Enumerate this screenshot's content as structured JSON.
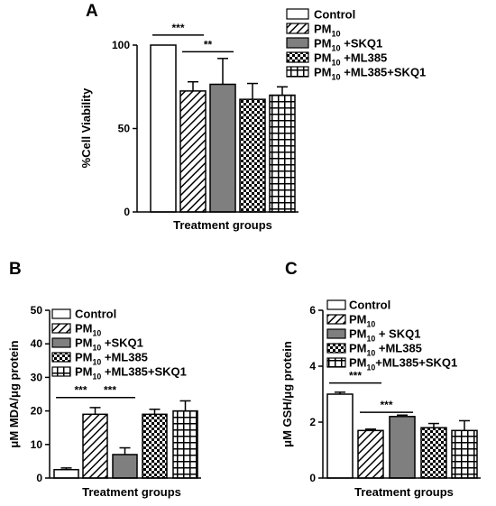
{
  "figure": {
    "panels": [
      {
        "letter": "A"
      },
      {
        "letter": "B"
      },
      {
        "letter": "C"
      }
    ]
  },
  "chart_data": [
    {
      "type": "bar",
      "panel": "A",
      "categories": [
        "Control",
        "PM10",
        "PM10 +SKQ1",
        "PM10 +ML385",
        "PM10 +ML385+SKQ1"
      ],
      "legend_labels": [
        {
          "base": "Control",
          "sub": "",
          "suffix": ""
        },
        {
          "base": "PM",
          "sub": "10",
          "suffix": ""
        },
        {
          "base": "PM",
          "sub": "10",
          "suffix": " +SKQ1"
        },
        {
          "base": "PM",
          "sub": "10",
          "suffix": " +ML385"
        },
        {
          "base": "PM",
          "sub": "10",
          "suffix": " +ML385+SKQ1"
        }
      ],
      "values": [
        100,
        72.5,
        76.5,
        67.5,
        70
      ],
      "errors": [
        0,
        5.5,
        15.5,
        9.5,
        5
      ],
      "xlabel": "Treatment groups",
      "ylabel": "%Cell Viability",
      "ylim": [
        0,
        100
      ],
      "yticks": [
        0,
        50,
        100
      ],
      "patterns": [
        "white",
        "diagonal",
        "gray",
        "checker",
        "grid"
      ],
      "legend_position": "top-right",
      "significance": [
        {
          "from": 0,
          "to": 1,
          "label": "***",
          "y": 106
        },
        {
          "from": 1,
          "to": 2,
          "label": "**",
          "y": 96
        }
      ]
    },
    {
      "type": "bar",
      "panel": "B",
      "categories": [
        "Control",
        "PM10",
        "PM10 +SKQ1",
        "PM10 +ML385",
        "PM10 +ML385+SKQ1"
      ],
      "legend_labels": [
        {
          "base": "Control",
          "sub": "",
          "suffix": ""
        },
        {
          "base": "PM",
          "sub": "10",
          "suffix": ""
        },
        {
          "base": "PM",
          "sub": "10",
          "suffix": " +SKQ1"
        },
        {
          "base": "PM",
          "sub": "10",
          "suffix": " +ML385"
        },
        {
          "base": "PM",
          "sub": "10",
          "suffix": " +ML385+SKQ1"
        }
      ],
      "values": [
        2.5,
        19,
        7,
        19,
        20
      ],
      "errors": [
        0.5,
        2,
        2,
        1.5,
        3
      ],
      "xlabel": "Treatment groups",
      "ylabel": "μM MDA/μg protein",
      "ylim": [
        0,
        50
      ],
      "yticks": [
        0,
        10,
        20,
        30,
        40,
        50
      ],
      "patterns": [
        "white",
        "diagonal",
        "gray",
        "checker",
        "grid"
      ],
      "legend_position": "top-left",
      "significance": [
        {
          "from": 0,
          "to": 1,
          "label": "***",
          "y": 24
        },
        {
          "from": 1,
          "to": 2,
          "label": "***",
          "y": 24
        }
      ]
    },
    {
      "type": "bar",
      "panel": "C",
      "categories": [
        "Control",
        "PM10",
        "PM10 + SKQ1",
        "PM10 +ML385",
        "PM10+ML385+SKQ1"
      ],
      "legend_labels": [
        {
          "base": "Control",
          "sub": "",
          "suffix": ""
        },
        {
          "base": "PM",
          "sub": "10",
          "suffix": ""
        },
        {
          "base": "PM",
          "sub": "10",
          "suffix": " + SKQ1"
        },
        {
          "base": "PM",
          "sub": "10",
          "suffix": " +ML385"
        },
        {
          "base": "PM",
          "sub": "10",
          "suffix": "+ML385+SKQ1"
        }
      ],
      "values": [
        3.0,
        1.7,
        2.2,
        1.8,
        1.7
      ],
      "errors": [
        0.07,
        0.05,
        0.05,
        0.15,
        0.35
      ],
      "xlabel": "Treatment groups",
      "ylabel": "μM GSH/μg protein",
      "ylim": [
        0,
        6
      ],
      "yticks": [
        0,
        2,
        4,
        6
      ],
      "patterns": [
        "white",
        "diagonal",
        "gray",
        "checker",
        "grid"
      ],
      "legend_position": "top-left",
      "significance": [
        {
          "from": 0,
          "to": 1,
          "label": "***",
          "y": 3.4
        },
        {
          "from": 1,
          "to": 2,
          "label": "***",
          "y": 2.35
        }
      ]
    }
  ]
}
